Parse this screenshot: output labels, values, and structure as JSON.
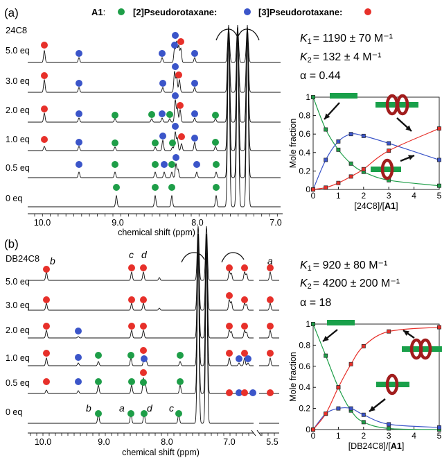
{
  "colors": {
    "green": "#1e9e48",
    "blue": "#3b55c9",
    "red": "#e7302a",
    "ring": "#a11d1d",
    "axle": "#19a04a"
  },
  "legend": {
    "a1": "A1",
    "colon": ":",
    "p2": "[2]Pseudorotaxane:",
    "p3": "[3]Pseudorotaxane:"
  },
  "panel_a": {
    "label": "(a)",
    "host": "24C8",
    "rows": [
      "5.0 eq",
      "3.0 eq",
      "2.0 eq",
      "1.0 eq",
      "0.5 eq",
      "0 eq"
    ],
    "ticks": [
      "10.0",
      "9.0",
      "8.0",
      "7.0"
    ],
    "xlabel": "chemical shift (ppm)",
    "k1": "= 1190 ± 70 M⁻¹",
    "k2": "= 132 ± 4 M⁻¹",
    "alpha": "α = 0.44"
  },
  "panel_b": {
    "label": "(b)",
    "host": "DB24C8",
    "rows": [
      "5.0 eq",
      "3.0 eq",
      "2.0 eq",
      "1.0 eq",
      "0.5 eq",
      "0 eq"
    ],
    "ticks": [
      "10.0",
      "9.0",
      "8.0",
      "7.0",
      "6.0",
      "5.5"
    ],
    "xlabel": "chemical shift (ppm)",
    "k1": "= 920 ± 80 M⁻¹",
    "k2": "= 4200 ± 200 M⁻¹",
    "alpha": "α = 18",
    "peak_letters": [
      "b",
      "a",
      "d",
      "c",
      "c",
      "d",
      "b",
      "a"
    ]
  },
  "chart_data": [
    {
      "type": "scatter",
      "title": "",
      "xlabel": "[24C8]/[A1]",
      "ylabel": "Mole fraction",
      "xlim": [
        0,
        5
      ],
      "ylim": [
        0,
        1
      ],
      "xticks": [
        "0",
        "1",
        "2",
        "3",
        "4",
        "5"
      ],
      "yticks": [
        "0",
        "0.2",
        "0.4",
        "0.6",
        "0.8",
        "1"
      ],
      "x": [
        0,
        0.5,
        1.0,
        1.5,
        2.0,
        3.0,
        5.0
      ],
      "series": [
        {
          "color": "green",
          "values": [
            1.0,
            0.65,
            0.43,
            0.28,
            0.19,
            0.1,
            0.04
          ]
        },
        {
          "color": "blue",
          "values": [
            0.0,
            0.32,
            0.52,
            0.6,
            0.58,
            0.5,
            0.32
          ]
        },
        {
          "color": "red",
          "values": [
            0.0,
            0.02,
            0.07,
            0.14,
            0.22,
            0.42,
            0.66
          ]
        }
      ],
      "grid": false
    },
    {
      "type": "scatter",
      "title": "",
      "xlabel": "[DB24C8]/[A1]",
      "ylabel": "Mole fraction",
      "xlim": [
        0,
        5
      ],
      "ylim": [
        0,
        1
      ],
      "xticks": [
        "0",
        "1",
        "2",
        "3",
        "4",
        "5"
      ],
      "yticks": [
        "0",
        "0.2",
        "0.4",
        "0.6",
        "0.8",
        "1"
      ],
      "x": [
        0,
        0.5,
        1.0,
        1.5,
        2.0,
        3.0,
        5.0
      ],
      "series": [
        {
          "color": "green",
          "values": [
            1.0,
            0.7,
            0.4,
            0.18,
            0.07,
            0.01,
            0.0
          ]
        },
        {
          "color": "blue",
          "values": [
            0.0,
            0.15,
            0.2,
            0.2,
            0.14,
            0.05,
            0.02
          ]
        },
        {
          "color": "red",
          "values": [
            0.0,
            0.15,
            0.4,
            0.62,
            0.79,
            0.93,
            0.97
          ]
        }
      ],
      "grid": false
    }
  ]
}
